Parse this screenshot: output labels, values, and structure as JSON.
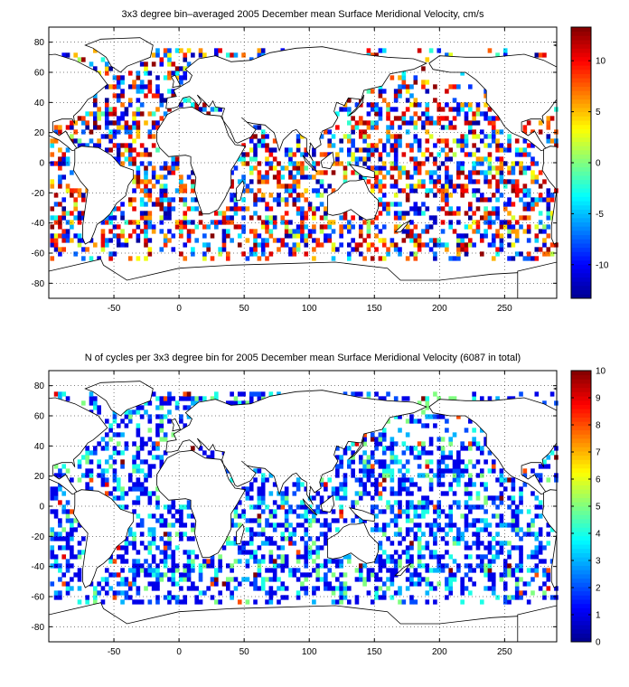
{
  "colors": {
    "jet": [
      "#00008f",
      "#0000ff",
      "#0080ff",
      "#00ffff",
      "#80ff80",
      "#ffff00",
      "#ff8000",
      "#ff0000",
      "#800000"
    ],
    "coast": "#000000",
    "grid": "#000000"
  },
  "chart_data": [
    {
      "type": "heatmap",
      "title": "3x3 degree bin–averaged 2005 December mean Surface Meridional Velocity, cm/s",
      "xlabel": "",
      "ylabel": "",
      "xlim": [
        -100,
        290
      ],
      "ylim": [
        -90,
        90
      ],
      "xticks": [
        "-50",
        "0",
        "50",
        "100",
        "150",
        "200",
        "250"
      ],
      "xtick_values": [
        -50,
        0,
        50,
        100,
        150,
        200,
        250
      ],
      "yticks": [
        "80",
        "60",
        "40",
        "20",
        "0",
        "-20",
        "-40",
        "-60",
        "-80"
      ],
      "ytick_values": [
        80,
        60,
        40,
        20,
        0,
        -20,
        -40,
        -60,
        -80
      ],
      "grid": true,
      "bin_size_deg": 3,
      "colorbar": {
        "min": -13.3,
        "max": 13.3,
        "ticks": [
          "10",
          "5",
          "0",
          "-5",
          "-10"
        ],
        "tick_values": [
          10,
          5,
          0,
          -5,
          -10
        ]
      },
      "coverage": "ocean bins between about 65S and 75N; values spread across -13 to 13 cm/s"
    },
    {
      "type": "heatmap",
      "title": "N of cycles per 3x3 degree bin for 2005 December mean Surface Meridional Velocity (6087 in total)",
      "xlabel": "",
      "ylabel": "",
      "xlim": [
        -100,
        290
      ],
      "ylim": [
        -90,
        90
      ],
      "xticks": [
        "-50",
        "0",
        "50",
        "100",
        "150",
        "200",
        "250"
      ],
      "xtick_values": [
        -50,
        0,
        50,
        100,
        150,
        200,
        250
      ],
      "yticks": [
        "80",
        "60",
        "40",
        "20",
        "0",
        "-20",
        "-40",
        "-60",
        "-80"
      ],
      "ytick_values": [
        80,
        60,
        40,
        20,
        0,
        -20,
        -40,
        -60,
        -80
      ],
      "grid": true,
      "bin_size_deg": 3,
      "total_cycles": 6087,
      "colorbar": {
        "min": 0,
        "max": 10,
        "ticks": [
          "10",
          "9",
          "8",
          "7",
          "6",
          "5",
          "4",
          "3",
          "2",
          "1",
          "0"
        ],
        "tick_values": [
          10,
          9,
          8,
          7,
          6,
          5,
          4,
          3,
          2,
          1,
          0
        ]
      },
      "coverage": "ocean bins between about 65S and 75N; most bins hold 1 to 4 cycles, a few near 10"
    }
  ]
}
